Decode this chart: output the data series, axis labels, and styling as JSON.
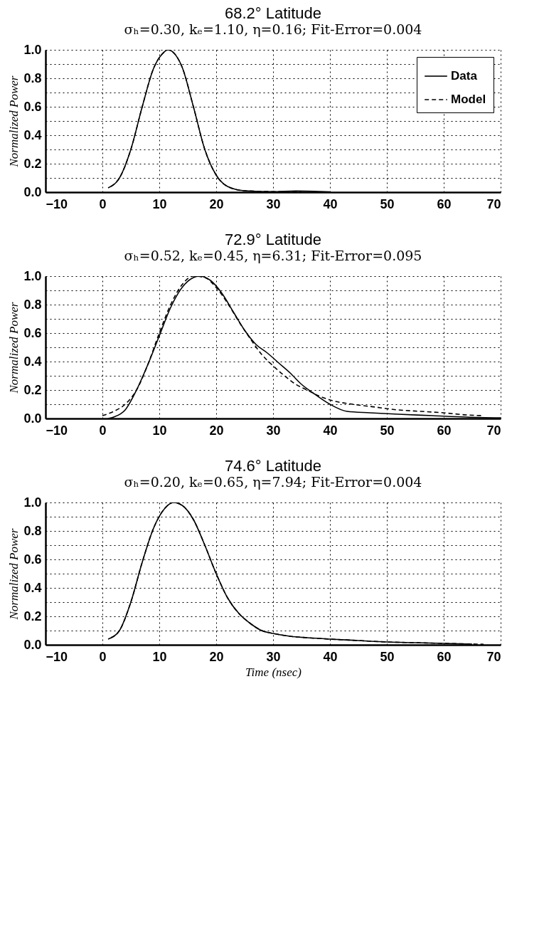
{
  "chart_data": [
    {
      "type": "line",
      "title": "68.2° Latitude",
      "subtitle": "σₕ=0.30, kₑ=1.10, η=0.16; Fit-Error=0.004",
      "ylabel": "Normalized Power",
      "xlim": [
        -10,
        70
      ],
      "xticks": [
        -10,
        0,
        10,
        20,
        30,
        40,
        50,
        60,
        70
      ],
      "ylim": [
        0,
        1
      ],
      "yticks": [
        {
          "value": 0,
          "label": "0.0"
        },
        {
          "value": 0.1,
          "label": null
        },
        {
          "value": 0.2,
          "label": "0.2"
        },
        {
          "value": 0.3,
          "label": null
        },
        {
          "value": 0.4,
          "label": "0.4"
        },
        {
          "value": 0.5,
          "label": null
        },
        {
          "value": 0.6,
          "label": "0.6"
        },
        {
          "value": 0.7,
          "label": null
        },
        {
          "value": 0.8,
          "label": "0.8"
        },
        {
          "value": 0.9,
          "label": null
        },
        {
          "value": 1,
          "label": "1.0"
        }
      ],
      "grid": true,
      "legend": "top right",
      "series": [
        {
          "name": "Data",
          "color": "#000000",
          "line_style": "solid",
          "x": [
            1,
            3,
            5,
            7,
            9,
            10.5,
            11.5,
            12.5,
            14,
            16,
            18,
            20,
            22,
            25,
            30,
            34,
            40
          ],
          "values": [
            0.03,
            0.1,
            0.3,
            0.6,
            0.87,
            0.97,
            1.0,
            0.98,
            0.88,
            0.6,
            0.3,
            0.12,
            0.04,
            0.01,
            0.003,
            0.008,
            0.002
          ]
        },
        {
          "name": "Model",
          "color": "#000000",
          "line_style": "dashed",
          "x": [
            1.5,
            3,
            5,
            7,
            9,
            10.5,
            11.5,
            12.5,
            14,
            16,
            18,
            20,
            22,
            25,
            30,
            35
          ],
          "values": [
            0.04,
            0.1,
            0.3,
            0.6,
            0.87,
            0.97,
            1.0,
            0.98,
            0.88,
            0.6,
            0.3,
            0.12,
            0.04,
            0.01,
            0.004,
            0.004
          ]
        }
      ]
    },
    {
      "type": "line",
      "title": "72.9° Latitude",
      "subtitle": "σₕ=0.52, kₑ=0.45, η=6.31; Fit-Error=0.095",
      "ylabel": "Normalized Power",
      "xlim": [
        -10,
        70
      ],
      "xticks": [
        -10,
        0,
        10,
        20,
        30,
        40,
        50,
        60,
        70
      ],
      "ylim": [
        0,
        1
      ],
      "yticks": [
        {
          "value": 0,
          "label": "0.0"
        },
        {
          "value": 0.1,
          "label": null
        },
        {
          "value": 0.2,
          "label": "0.2"
        },
        {
          "value": 0.3,
          "label": null
        },
        {
          "value": 0.4,
          "label": "0.4"
        },
        {
          "value": 0.5,
          "label": null
        },
        {
          "value": 0.6,
          "label": "0.6"
        },
        {
          "value": 0.7,
          "label": null
        },
        {
          "value": 0.8,
          "label": "0.8"
        },
        {
          "value": 0.9,
          "label": null
        },
        {
          "value": 1,
          "label": "1.0"
        }
      ],
      "grid": true,
      "series": [
        {
          "color": "#000000",
          "line_style": "solid",
          "x": [
            1,
            2,
            4,
            6,
            8,
            10,
            12,
            14,
            16,
            17,
            19,
            21,
            23,
            25,
            27,
            29,
            31,
            33,
            35,
            37,
            40,
            43,
            47,
            52,
            58,
            64,
            70
          ],
          "values": [
            0,
            0.01,
            0.06,
            0.2,
            0.38,
            0.58,
            0.78,
            0.92,
            0.99,
            1.0,
            0.97,
            0.88,
            0.75,
            0.62,
            0.52,
            0.46,
            0.39,
            0.32,
            0.24,
            0.18,
            0.1,
            0.05,
            0.04,
            0.03,
            0.02,
            0.01,
            0.005
          ]
        },
        {
          "color": "#000000",
          "line_style": "dashed",
          "x": [
            0,
            2,
            4,
            6,
            8,
            10,
            12,
            14,
            16,
            18,
            20,
            22,
            24,
            26,
            28,
            30,
            32,
            34,
            36,
            38,
            40,
            44,
            48,
            52,
            56,
            60,
            64,
            67
          ],
          "values": [
            0.02,
            0.05,
            0.1,
            0.2,
            0.38,
            0.6,
            0.8,
            0.94,
            1.0,
            0.99,
            0.92,
            0.81,
            0.68,
            0.56,
            0.45,
            0.37,
            0.3,
            0.24,
            0.2,
            0.16,
            0.13,
            0.1,
            0.08,
            0.06,
            0.05,
            0.04,
            0.025,
            0.02
          ]
        }
      ]
    },
    {
      "type": "line",
      "title": "74.6° Latitude",
      "subtitle": "σₕ=0.20, kₑ=0.65, η=7.94; Fit-Error=0.004",
      "xlabel": "Time (nsec)",
      "ylabel": "Normalized Power",
      "xlim": [
        -10,
        70
      ],
      "xticks": [
        -10,
        0,
        10,
        20,
        30,
        40,
        50,
        60,
        70
      ],
      "ylim": [
        0,
        1
      ],
      "yticks": [
        {
          "value": 0,
          "label": "0.0"
        },
        {
          "value": 0.1,
          "label": null
        },
        {
          "value": 0.2,
          "label": "0.2"
        },
        {
          "value": 0.3,
          "label": null
        },
        {
          "value": 0.4,
          "label": "0.4"
        },
        {
          "value": 0.5,
          "label": null
        },
        {
          "value": 0.6,
          "label": "0.6"
        },
        {
          "value": 0.7,
          "label": null
        },
        {
          "value": 0.8,
          "label": "0.8"
        },
        {
          "value": 0.9,
          "label": null
        },
        {
          "value": 1,
          "label": "1.0"
        }
      ],
      "grid": true,
      "series": [
        {
          "color": "#000000",
          "line_style": "solid",
          "x": [
            1,
            3,
            5,
            7,
            9,
            11,
            12.5,
            14,
            16,
            18,
            20,
            22,
            24,
            26,
            28,
            30,
            33,
            36,
            40,
            45,
            50,
            55,
            60,
            65
          ],
          "values": [
            0.04,
            0.1,
            0.3,
            0.58,
            0.82,
            0.96,
            1.0,
            0.98,
            0.88,
            0.7,
            0.5,
            0.33,
            0.22,
            0.15,
            0.1,
            0.08,
            0.06,
            0.05,
            0.04,
            0.03,
            0.02,
            0.015,
            0.01,
            0.005
          ]
        },
        {
          "color": "#000000",
          "line_style": "dashed",
          "x": [
            1.5,
            3,
            5,
            7,
            9,
            11,
            12.5,
            14,
            16,
            18,
            20,
            22,
            24,
            26,
            28,
            30,
            33,
            36,
            40,
            45,
            50,
            55,
            60,
            67
          ],
          "values": [
            0.05,
            0.1,
            0.3,
            0.58,
            0.82,
            0.96,
            1.0,
            0.98,
            0.88,
            0.7,
            0.5,
            0.33,
            0.22,
            0.15,
            0.1,
            0.08,
            0.06,
            0.05,
            0.04,
            0.03,
            0.02,
            0.015,
            0.01,
            0.004
          ]
        }
      ]
    }
  ]
}
